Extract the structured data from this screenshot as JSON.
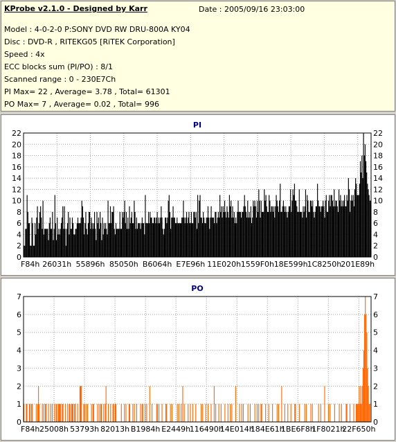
{
  "info": {
    "title": "KProbe v2.1.0 - Designed by Karr",
    "date": "Date : 2005/09/16 23:03:00",
    "lines": [
      "Model : 4-0-2-0 P:SONY    DVD RW DRU-800A  KY04",
      "Disc : DVD-R , RITEKG05 [RiTEK Corporation]",
      "Speed : 4x",
      "ECC blocks sum (PI/PO) : 8/1",
      "Scanned range : 0 - 230E7Ch",
      "PI Max= 22 , Average= 3.78 , Total= 61301",
      "PO Max= 7 , Average= 0.02 , Total= 996"
    ]
  },
  "chart_data": [
    {
      "type": "bar",
      "title": "PI",
      "ylim": [
        0,
        22
      ],
      "yticks": [
        0,
        2,
        4,
        6,
        8,
        10,
        12,
        14,
        16,
        18,
        20,
        22
      ],
      "xticklabels": [
        "F84h",
        "26031h",
        "55896h",
        "85050h",
        "B6064h",
        "E7E96h",
        "11E020h",
        "1559F0h",
        "18E599h",
        "1C8250h",
        "201E89h"
      ],
      "grid": true,
      "colors": {
        "bars": "#000000",
        "title": "#000080"
      },
      "summary": {
        "max": 22,
        "average": 3.78,
        "total": 61301
      },
      "values": [
        2,
        2,
        5,
        5,
        11,
        8,
        6,
        6,
        2,
        2,
        7,
        6,
        2,
        2,
        6,
        4,
        7,
        9,
        5,
        6,
        8,
        9,
        7,
        5,
        10,
        4,
        5,
        5,
        5,
        5,
        5,
        3,
        6,
        7,
        5,
        5,
        8,
        3,
        5,
        11,
        6,
        3,
        7,
        4,
        5,
        4,
        5,
        6,
        7,
        9,
        5,
        9,
        5,
        2,
        5,
        6,
        8,
        4,
        7,
        5,
        5,
        7,
        6,
        4,
        4,
        5,
        5,
        6,
        7,
        6,
        6,
        6,
        7,
        10,
        9,
        7,
        4,
        6,
        8,
        5,
        4,
        6,
        8,
        8,
        5,
        7,
        6,
        5,
        6,
        8,
        5,
        3,
        8,
        6,
        7,
        5,
        8,
        6,
        3,
        7,
        4,
        6,
        5,
        6,
        5,
        4,
        10,
        6,
        6,
        9,
        6,
        8,
        8,
        9,
        5,
        4,
        6,
        5,
        5,
        5,
        5,
        8,
        5,
        5,
        8,
        7,
        8,
        10,
        6,
        8,
        5,
        7,
        5,
        9,
        6,
        7,
        8,
        6,
        6,
        10,
        8,
        5,
        7,
        5,
        6,
        6,
        6,
        5,
        6,
        7,
        6,
        6,
        4,
        11,
        6,
        6,
        6,
        8,
        6,
        8,
        7,
        7,
        6,
        6,
        7,
        7,
        6,
        7,
        8,
        6,
        7,
        6,
        7,
        9,
        7,
        5,
        4,
        5,
        7,
        7,
        6,
        7,
        10,
        11,
        8,
        5,
        7,
        7,
        9,
        7,
        7,
        6,
        6,
        7,
        6,
        6,
        6,
        6,
        6,
        7,
        7,
        10,
        7,
        6,
        7,
        8,
        6,
        7,
        8,
        6,
        6,
        8,
        6,
        6,
        8,
        8,
        7,
        8,
        5,
        11,
        6,
        10,
        11,
        7,
        7,
        6,
        8,
        7,
        6,
        6,
        7,
        7,
        9,
        7,
        5,
        7,
        9,
        7,
        7,
        7,
        6,
        8,
        8,
        6,
        7,
        8,
        7,
        11,
        8,
        9,
        7,
        9,
        8,
        10,
        8,
        7,
        9,
        8,
        7,
        11,
        9,
        10,
        7,
        9,
        7,
        8,
        6,
        7,
        6,
        8,
        10,
        8,
        8,
        8,
        7,
        8,
        8,
        9,
        11,
        9,
        8,
        7,
        10,
        7,
        8,
        7,
        9,
        6,
        7,
        10,
        9,
        10,
        9,
        7,
        10,
        8,
        12,
        10,
        7,
        10,
        8,
        8,
        8,
        12,
        10,
        11,
        9,
        8,
        8,
        11,
        10,
        8,
        9,
        9,
        8,
        9,
        7,
        9,
        11,
        10,
        9,
        8,
        10,
        13,
        8,
        8,
        9,
        10,
        9,
        8,
        9,
        8,
        7,
        8,
        9,
        9,
        12,
        8,
        10,
        12,
        11,
        13,
        10,
        10,
        9,
        8,
        8,
        12,
        8,
        8,
        8,
        7,
        9,
        8,
        9,
        12,
        7,
        11,
        10,
        8,
        8,
        10,
        10,
        9,
        10,
        8,
        7,
        8,
        9,
        9,
        13,
        10,
        9,
        9,
        8,
        9,
        9,
        10,
        9,
        7,
        10,
        11,
        8,
        8,
        10,
        11,
        9,
        11,
        11,
        10,
        9,
        12,
        9,
        10,
        10,
        9,
        8,
        12,
        10,
        11,
        9,
        10,
        9,
        10,
        11,
        9,
        9,
        11,
        10,
        14,
        12,
        8,
        10,
        11,
        10,
        11,
        9,
        12,
        14,
        13,
        11,
        11,
        11,
        13,
        17,
        15,
        18,
        14,
        22,
        18,
        20,
        17,
        15,
        13,
        12,
        11,
        10,
        10
      ]
    },
    {
      "type": "bar",
      "title": "PO",
      "ylim": [
        0,
        7
      ],
      "yticks": [
        0,
        1,
        2,
        3,
        4,
        5,
        6,
        7
      ],
      "xticklabels": [
        "F84h",
        "25008h",
        "53793h",
        "82013h",
        "B1984h",
        "E2449h",
        "116490h",
        "14E014h",
        "184E61h",
        "1BE6F8h",
        "1F8021h",
        "22F650h"
      ],
      "grid": true,
      "colors": {
        "bars": "#ff6600",
        "title": "#000080"
      },
      "summary": {
        "max": 7,
        "average": 0.02,
        "total": 996
      },
      "values": [
        1,
        0,
        0,
        1,
        1,
        0,
        0,
        1,
        1,
        0,
        1,
        1,
        0,
        0,
        0,
        0,
        1,
        0,
        1,
        2,
        1,
        0,
        0,
        0,
        1,
        0,
        1,
        0,
        1,
        1,
        0,
        0,
        1,
        0,
        0,
        1,
        0,
        1,
        0,
        0,
        1,
        0,
        1,
        1,
        0,
        1,
        1,
        1,
        1,
        0,
        1,
        1,
        0,
        0,
        1,
        0,
        0,
        1,
        0,
        1,
        1,
        0,
        1,
        1,
        1,
        0,
        1,
        1,
        0,
        0,
        1,
        0,
        0,
        2,
        2,
        2,
        0,
        0,
        1,
        1,
        0,
        1,
        0,
        1,
        0,
        0,
        0,
        0,
        1,
        0,
        1,
        1,
        0,
        0,
        0,
        0,
        1,
        0,
        1,
        0,
        1,
        1,
        0,
        0,
        1,
        0,
        1,
        2,
        0,
        0,
        1,
        0,
        0,
        1,
        0,
        0,
        1,
        1,
        0,
        1,
        1,
        0,
        0,
        0,
        0,
        0,
        0,
        1,
        0,
        0,
        0,
        1,
        0,
        1,
        0,
        0,
        0,
        1,
        1,
        0,
        0,
        0,
        1,
        0,
        1,
        0,
        0,
        1,
        0,
        0,
        0,
        0,
        1,
        0,
        1,
        1,
        0,
        0,
        1,
        0,
        1,
        0,
        0,
        0,
        2,
        0,
        0,
        1,
        0,
        0,
        0,
        0,
        0,
        1,
        1,
        0,
        1,
        0,
        0,
        0,
        1,
        0,
        0,
        0,
        0,
        1,
        1,
        0,
        0,
        0,
        0,
        1,
        0,
        1,
        0,
        0,
        0,
        0,
        0,
        0,
        1,
        0,
        1,
        0,
        0,
        1,
        0,
        2,
        0,
        1,
        0,
        0,
        0,
        0,
        1,
        0,
        0,
        1,
        0,
        0,
        1,
        0,
        0,
        0,
        1,
        0,
        0,
        0,
        0,
        0,
        0,
        1,
        0,
        1,
        0,
        0,
        0,
        1,
        0,
        0,
        1,
        0,
        0,
        0,
        1,
        0,
        0,
        0,
        2,
        0,
        1,
        0,
        0,
        0,
        1,
        0,
        0,
        1,
        0,
        0,
        0,
        0,
        1,
        0,
        0,
        0,
        1,
        0,
        0,
        1,
        0,
        1,
        0,
        0,
        0,
        0,
        2,
        0,
        0,
        0,
        0,
        1,
        0,
        0,
        1,
        0,
        1,
        0,
        0,
        0,
        0,
        0,
        1,
        0,
        0,
        1,
        0,
        0,
        0,
        0,
        0,
        1,
        0,
        0,
        1,
        0,
        1,
        0,
        0,
        1,
        1,
        0,
        0,
        0,
        0,
        1,
        0,
        0,
        0,
        1,
        0,
        0,
        0,
        0,
        1,
        0,
        0,
        0,
        0,
        0,
        1,
        0,
        1,
        0,
        0,
        0,
        2,
        0,
        0,
        0,
        1,
        0,
        0,
        0,
        1,
        0,
        0,
        0,
        1,
        0,
        0,
        0,
        0,
        1,
        1,
        0,
        0,
        0,
        0,
        1,
        0,
        0,
        0,
        0,
        0,
        0,
        1,
        0,
        1,
        0,
        0,
        0,
        0,
        0,
        1,
        0,
        1,
        0,
        0,
        0,
        0,
        0,
        0,
        0,
        1,
        0,
        0,
        1,
        0,
        0,
        0,
        0,
        2,
        0,
        0,
        0,
        0,
        1,
        0,
        1,
        0,
        0,
        0,
        0,
        0,
        1,
        0,
        0,
        0,
        0,
        0,
        1,
        0,
        0,
        1,
        0,
        0,
        0,
        0,
        0,
        1,
        1,
        0,
        0,
        0,
        1,
        0,
        0,
        0,
        0,
        1,
        0,
        0,
        1,
        1,
        1,
        1,
        2,
        1,
        2,
        1,
        2,
        3,
        4,
        6,
        7,
        6,
        5,
        3,
        2,
        1,
        1,
        0
      ]
    }
  ]
}
